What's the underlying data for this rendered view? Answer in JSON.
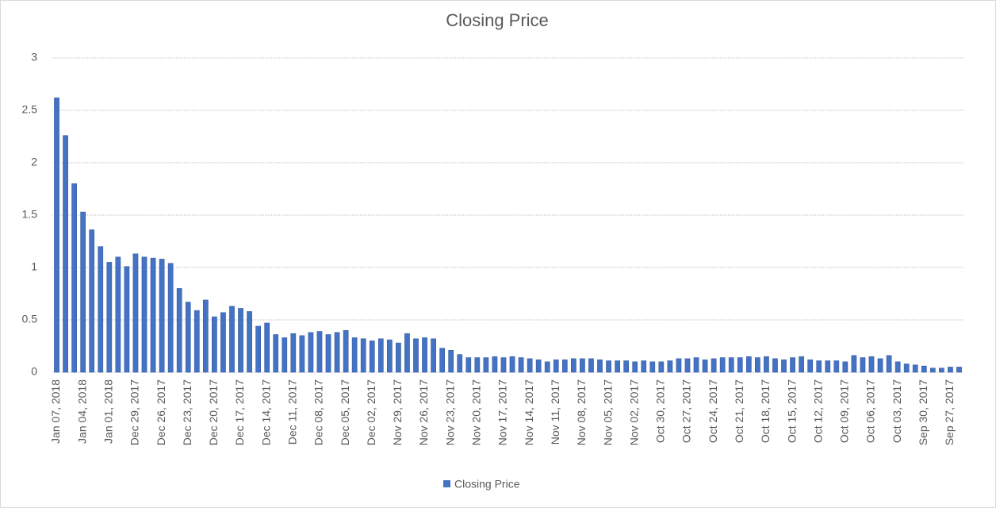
{
  "chart_data": {
    "type": "bar",
    "title": "Closing Price",
    "categories": [
      "Jan 07, 2018",
      null,
      null,
      "Jan 04, 2018",
      null,
      null,
      "Jan 01, 2018",
      null,
      null,
      "Dec 29, 2017",
      null,
      null,
      "Dec 26, 2017",
      null,
      null,
      "Dec 23, 2017",
      null,
      null,
      "Dec 20, 2017",
      null,
      null,
      "Dec 17, 2017",
      null,
      null,
      "Dec 14, 2017",
      null,
      null,
      "Dec 11, 2017",
      null,
      null,
      "Dec 08, 2017",
      null,
      null,
      "Dec 05, 2017",
      null,
      null,
      "Dec 02, 2017",
      null,
      null,
      "Nov 29, 2017",
      null,
      null,
      "Nov 26, 2017",
      null,
      null,
      "Nov 23, 2017",
      null,
      null,
      "Nov 20, 2017",
      null,
      null,
      "Nov 17, 2017",
      null,
      null,
      "Nov 14, 2017",
      null,
      null,
      "Nov 11, 2017",
      null,
      null,
      "Nov 08, 2017",
      null,
      null,
      "Nov 05, 2017",
      null,
      null,
      "Nov 02, 2017",
      null,
      null,
      "Oct 30, 2017",
      null,
      null,
      "Oct 27, 2017",
      null,
      null,
      "Oct 24, 2017",
      null,
      null,
      "Oct 21, 2017",
      null,
      null,
      "Oct 18, 2017",
      null,
      null,
      "Oct 15, 2017",
      null,
      null,
      "Oct 12, 2017",
      null,
      null,
      "Oct 09, 2017",
      null,
      null,
      "Oct 06, 2017",
      null,
      null,
      "Oct 03, 2017",
      null,
      null,
      "Sep 30, 2017",
      null,
      null,
      "Sep 27, 2017",
      null
    ],
    "series": [
      {
        "name": "Closing Price",
        "color": "#4472c4",
        "values": [
          2.62,
          2.26,
          1.8,
          1.53,
          1.36,
          1.2,
          1.05,
          1.1,
          1.01,
          1.13,
          1.1,
          1.09,
          1.08,
          1.04,
          0.8,
          0.67,
          0.59,
          0.69,
          0.53,
          0.57,
          0.63,
          0.61,
          0.58,
          0.44,
          0.47,
          0.36,
          0.33,
          0.37,
          0.35,
          0.38,
          0.39,
          0.36,
          0.38,
          0.4,
          0.33,
          0.32,
          0.3,
          0.32,
          0.31,
          0.28,
          0.37,
          0.32,
          0.33,
          0.32,
          0.23,
          0.21,
          0.17,
          0.14,
          0.14,
          0.14,
          0.15,
          0.14,
          0.15,
          0.14,
          0.13,
          0.12,
          0.1,
          0.12,
          0.12,
          0.13,
          0.13,
          0.13,
          0.12,
          0.11,
          0.11,
          0.11,
          0.1,
          0.11,
          0.1,
          0.1,
          0.11,
          0.13,
          0.13,
          0.14,
          0.12,
          0.13,
          0.14,
          0.14,
          0.14,
          0.15,
          0.14,
          0.15,
          0.13,
          0.12,
          0.14,
          0.15,
          0.12,
          0.11,
          0.11,
          0.11,
          0.1,
          0.16,
          0.14,
          0.15,
          0.13,
          0.16,
          0.1,
          0.08,
          0.07,
          0.06,
          0.04,
          0.04,
          0.05,
          0.05
        ]
      }
    ],
    "ylim": [
      0,
      3
    ],
    "yticks": [
      0,
      0.5,
      1,
      1.5,
      2,
      2.5,
      3
    ],
    "grid": true,
    "legend": "bottom"
  }
}
